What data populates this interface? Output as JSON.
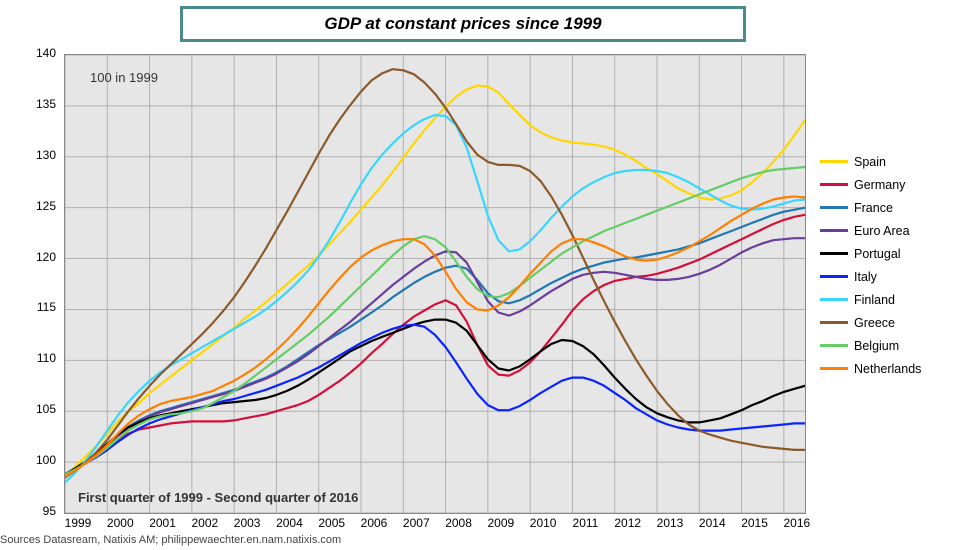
{
  "title": "GDP at constant prices since 1999",
  "note_100": "100 in 1999",
  "note_range": "First quarter of 1999 - Second quarter of 2016",
  "source": "Sources Datasream, Natixis AM;  philippewaechter.en.nam.natixis.com",
  "chart": {
    "type": "line",
    "background_color": "#e6e6e6",
    "grid_color": "#b0b0b0",
    "border_color": "#888888",
    "title_border_color": "#4a8a8a",
    "title_fontsize": 17,
    "label_fontsize": 12,
    "legend_fontsize": 12.5,
    "line_width": 2.2,
    "ylim": [
      95,
      140
    ],
    "ytick_step": 5,
    "yticks": [
      95,
      100,
      105,
      110,
      115,
      120,
      125,
      130,
      135,
      140
    ],
    "xlim": [
      1999,
      2016.5
    ],
    "xticks": [
      1999,
      2000,
      2001,
      2002,
      2003,
      2004,
      2005,
      2006,
      2007,
      2008,
      2009,
      2010,
      2011,
      2012,
      2013,
      2014,
      2015,
      2016
    ],
    "x_step": 0.25,
    "x_start": 1999.0,
    "series": [
      {
        "name": "Spain",
        "color": "#ffd600",
        "values": [
          98.5,
          99.6,
          100.6,
          101.6,
          102.8,
          104.0,
          105.0,
          105.8,
          106.8,
          107.6,
          108.4,
          109.2,
          110.0,
          110.8,
          111.6,
          112.4,
          113.2,
          114.1,
          114.9,
          115.7,
          116.6,
          117.5,
          118.4,
          119.3,
          120.3,
          121.4,
          122.5,
          123.6,
          124.8,
          126.0,
          127.2,
          128.5,
          129.9,
          131.3,
          132.6,
          133.8,
          134.9,
          135.9,
          136.6,
          137.0,
          136.9,
          136.3,
          135.2,
          134.1,
          133.1,
          132.4,
          131.9,
          131.6,
          131.4,
          131.3,
          131.2,
          131.0,
          130.7,
          130.2,
          129.6,
          128.9,
          128.3,
          127.6,
          126.9,
          126.4,
          126.0,
          125.8,
          125.9,
          126.2,
          126.7,
          127.5,
          128.4,
          129.5,
          130.7,
          132.1,
          133.6
        ],
        "order": 0
      },
      {
        "name": "Germany",
        "color": "#d30f3c",
        "values": [
          98.8,
          99.3,
          99.9,
          100.6,
          101.4,
          102.2,
          102.8,
          103.2,
          103.4,
          103.6,
          103.8,
          103.9,
          104.0,
          104.0,
          104.0,
          104.0,
          104.1,
          104.3,
          104.5,
          104.7,
          105.0,
          105.3,
          105.6,
          106.0,
          106.6,
          107.3,
          108.0,
          108.8,
          109.7,
          110.7,
          111.6,
          112.6,
          113.5,
          114.3,
          114.9,
          115.5,
          115.9,
          115.4,
          113.8,
          111.5,
          109.5,
          108.6,
          108.5,
          109.0,
          109.8,
          110.9,
          112.2,
          113.5,
          114.9,
          116.0,
          116.8,
          117.4,
          117.8,
          118.0,
          118.2,
          118.3,
          118.5,
          118.8,
          119.1,
          119.5,
          119.9,
          120.4,
          120.9,
          121.4,
          121.9,
          122.4,
          122.9,
          123.4,
          123.8,
          124.1,
          124.3
        ],
        "order": 1
      },
      {
        "name": "France",
        "color": "#1f78b4",
        "values": [
          98.8,
          99.4,
          100.1,
          100.9,
          101.8,
          102.7,
          103.5,
          104.1,
          104.6,
          105.0,
          105.3,
          105.6,
          105.9,
          106.2,
          106.5,
          106.8,
          107.1,
          107.5,
          107.9,
          108.3,
          108.8,
          109.4,
          110.1,
          110.8,
          111.5,
          112.1,
          112.7,
          113.3,
          114.0,
          114.7,
          115.4,
          116.2,
          116.9,
          117.6,
          118.2,
          118.7,
          119.1,
          119.3,
          119.0,
          117.9,
          116.6,
          115.8,
          115.6,
          115.9,
          116.4,
          117.0,
          117.6,
          118.1,
          118.6,
          119.0,
          119.3,
          119.6,
          119.8,
          120.0,
          120.1,
          120.3,
          120.5,
          120.7,
          120.9,
          121.2,
          121.5,
          121.9,
          122.3,
          122.7,
          123.1,
          123.5,
          123.9,
          124.3,
          124.6,
          124.8,
          125.0
        ],
        "order": 2
      },
      {
        "name": "Euro Area",
        "color": "#6a3d9a",
        "values": [
          98.8,
          99.4,
          100.0,
          100.8,
          101.7,
          102.6,
          103.4,
          104.0,
          104.5,
          104.9,
          105.2,
          105.5,
          105.8,
          106.1,
          106.4,
          106.7,
          107.0,
          107.4,
          107.8,
          108.2,
          108.7,
          109.3,
          109.9,
          110.6,
          111.4,
          112.2,
          113.0,
          113.8,
          114.7,
          115.6,
          116.5,
          117.4,
          118.2,
          119.0,
          119.7,
          120.3,
          120.7,
          120.6,
          119.6,
          117.7,
          115.8,
          114.7,
          114.4,
          114.8,
          115.4,
          116.1,
          116.8,
          117.4,
          118.0,
          118.4,
          118.6,
          118.7,
          118.6,
          118.4,
          118.2,
          118.0,
          117.9,
          117.9,
          118.0,
          118.2,
          118.5,
          118.9,
          119.4,
          120.0,
          120.6,
          121.1,
          121.5,
          121.8,
          121.9,
          122.0,
          122.0
        ],
        "order": 3
      },
      {
        "name": "Portugal",
        "color": "#000000",
        "values": [
          98.8,
          99.4,
          100.1,
          100.9,
          101.8,
          102.7,
          103.4,
          103.9,
          104.3,
          104.6,
          104.8,
          105.0,
          105.2,
          105.4,
          105.6,
          105.8,
          105.9,
          106.0,
          106.1,
          106.3,
          106.6,
          107.0,
          107.5,
          108.1,
          108.8,
          109.5,
          110.2,
          110.9,
          111.4,
          111.9,
          112.3,
          112.7,
          113.1,
          113.5,
          113.8,
          114.0,
          114.0,
          113.7,
          112.9,
          111.5,
          110.1,
          109.2,
          109.0,
          109.4,
          110.1,
          110.9,
          111.6,
          112.0,
          111.9,
          111.4,
          110.6,
          109.5,
          108.3,
          107.2,
          106.2,
          105.4,
          104.8,
          104.4,
          104.1,
          103.9,
          103.9,
          104.1,
          104.3,
          104.7,
          105.1,
          105.6,
          106.0,
          106.5,
          106.9,
          107.2,
          107.5
        ],
        "order": 4
      },
      {
        "name": "Italy",
        "color": "#0b24fb",
        "values": [
          98.8,
          99.3,
          99.9,
          100.5,
          101.2,
          102.0,
          102.7,
          103.3,
          103.8,
          104.2,
          104.5,
          104.8,
          105.1,
          105.4,
          105.7,
          106.0,
          106.2,
          106.5,
          106.8,
          107.1,
          107.5,
          107.9,
          108.3,
          108.8,
          109.3,
          109.9,
          110.5,
          111.1,
          111.7,
          112.2,
          112.7,
          113.1,
          113.4,
          113.5,
          113.3,
          112.5,
          111.3,
          109.8,
          108.2,
          106.7,
          105.6,
          105.1,
          105.1,
          105.5,
          106.1,
          106.8,
          107.4,
          108.0,
          108.3,
          108.3,
          108.0,
          107.5,
          106.8,
          106.1,
          105.3,
          104.7,
          104.1,
          103.7,
          103.4,
          103.2,
          103.1,
          103.1,
          103.1,
          103.2,
          103.3,
          103.4,
          103.5,
          103.6,
          103.7,
          103.8,
          103.8
        ],
        "order": 5
      },
      {
        "name": "Finland",
        "color": "#38d6ff",
        "values": [
          98.0,
          99.0,
          100.2,
          101.6,
          103.1,
          104.6,
          105.9,
          107.0,
          108.0,
          108.8,
          109.5,
          110.1,
          110.7,
          111.3,
          111.9,
          112.5,
          113.1,
          113.7,
          114.3,
          115.0,
          115.8,
          116.7,
          117.7,
          118.8,
          120.2,
          121.8,
          123.6,
          125.5,
          127.3,
          128.9,
          130.2,
          131.3,
          132.3,
          133.1,
          133.7,
          134.1,
          134.0,
          133.1,
          130.9,
          127.6,
          124.2,
          121.8,
          120.7,
          120.9,
          121.7,
          122.8,
          124.0,
          125.1,
          126.1,
          126.9,
          127.5,
          128.0,
          128.4,
          128.6,
          128.7,
          128.7,
          128.6,
          128.4,
          128.0,
          127.5,
          126.9,
          126.3,
          125.7,
          125.2,
          124.9,
          124.8,
          124.9,
          125.1,
          125.4,
          125.7,
          125.8
        ],
        "order": 6
      },
      {
        "name": "Greece",
        "color": "#8b5a2b",
        "values": [
          98.5,
          99.2,
          100.0,
          101.0,
          102.2,
          103.6,
          105.0,
          106.3,
          107.5,
          108.6,
          109.6,
          110.6,
          111.6,
          112.6,
          113.7,
          114.9,
          116.2,
          117.7,
          119.3,
          121.0,
          122.8,
          124.6,
          126.5,
          128.4,
          130.3,
          132.1,
          133.7,
          135.1,
          136.4,
          137.5,
          138.2,
          138.6,
          138.5,
          138.1,
          137.3,
          136.2,
          134.8,
          133.2,
          131.5,
          130.2,
          129.5,
          129.2,
          129.2,
          129.1,
          128.6,
          127.6,
          126.1,
          124.3,
          122.3,
          120.1,
          117.9,
          115.8,
          113.8,
          111.9,
          110.1,
          108.5,
          107.0,
          105.7,
          104.6,
          103.7,
          103.1,
          102.7,
          102.4,
          102.1,
          101.9,
          101.7,
          101.5,
          101.4,
          101.3,
          101.2,
          101.2
        ],
        "order": 7
      },
      {
        "name": "Belgium",
        "color": "#66cc66",
        "values": [
          98.8,
          99.3,
          99.9,
          100.6,
          101.4,
          102.3,
          103.1,
          103.7,
          104.2,
          104.5,
          104.7,
          104.8,
          105.0,
          105.3,
          105.8,
          106.4,
          107.0,
          107.7,
          108.5,
          109.3,
          110.1,
          110.9,
          111.7,
          112.5,
          113.4,
          114.3,
          115.3,
          116.3,
          117.3,
          118.3,
          119.3,
          120.3,
          121.2,
          121.9,
          122.2,
          121.9,
          121.1,
          119.7,
          118.2,
          117.0,
          116.3,
          116.2,
          116.6,
          117.3,
          118.1,
          118.9,
          119.7,
          120.5,
          121.1,
          121.7,
          122.2,
          122.7,
          123.1,
          123.5,
          123.9,
          124.3,
          124.7,
          125.1,
          125.5,
          125.9,
          126.3,
          126.7,
          127.1,
          127.5,
          127.9,
          128.2,
          128.5,
          128.7,
          128.8,
          128.9,
          129.0
        ],
        "order": 8
      },
      {
        "name": "Netherlands",
        "color": "#ff7f00",
        "values": [
          98.6,
          99.2,
          99.9,
          100.7,
          101.7,
          102.8,
          103.8,
          104.6,
          105.2,
          105.7,
          106.0,
          106.2,
          106.4,
          106.7,
          107.0,
          107.5,
          108.0,
          108.6,
          109.3,
          110.1,
          111.0,
          112.0,
          113.1,
          114.3,
          115.6,
          116.9,
          118.1,
          119.2,
          120.1,
          120.8,
          121.3,
          121.7,
          121.9,
          121.9,
          121.4,
          120.3,
          118.7,
          117.0,
          115.7,
          115.0,
          114.9,
          115.4,
          116.2,
          117.3,
          118.5,
          119.6,
          120.7,
          121.5,
          121.9,
          121.9,
          121.6,
          121.2,
          120.7,
          120.2,
          119.9,
          119.8,
          119.9,
          120.2,
          120.6,
          121.1,
          121.7,
          122.3,
          123.0,
          123.7,
          124.3,
          124.9,
          125.4,
          125.8,
          126.0,
          126.1,
          126.0
        ],
        "order": 9
      }
    ]
  }
}
